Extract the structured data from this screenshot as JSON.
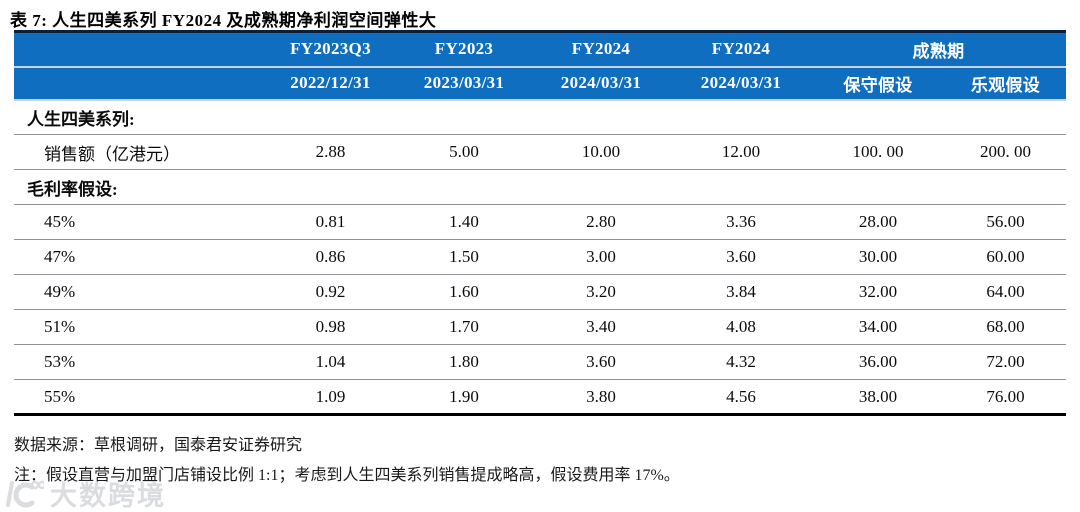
{
  "title": "表 7:  人生四美系列 FY2024 及成熟期净利润空间弹性大",
  "colors": {
    "header_blue": "#0f6ec0",
    "header_top_border": "#0c1e3d",
    "header_separator": "#c9d3de",
    "row_line": "#8f9399",
    "bottom_border": "#000000",
    "watermark_gray": "#c3c6cb"
  },
  "table": {
    "header_row1": [
      {
        "label": "",
        "colspan": 1
      },
      {
        "label": "FY2023Q3",
        "colspan": 1
      },
      {
        "label": "FY2023",
        "colspan": 1
      },
      {
        "label": "FY2024",
        "colspan": 1
      },
      {
        "label": "FY2024",
        "colspan": 1
      },
      {
        "label": "成熟期",
        "colspan": 2
      }
    ],
    "header_row2": [
      "",
      "2022/12/31",
      "2023/03/31",
      "2024/03/31",
      "2024/03/31",
      "保守假设",
      "乐观假设"
    ],
    "rows": [
      {
        "type": "section",
        "label": "人生四美系列:"
      },
      {
        "type": "data",
        "label": "销售额（亿港元）",
        "values": [
          "2.88",
          "5.00",
          "10.00",
          "12.00",
          "100. 00",
          "200. 00"
        ]
      },
      {
        "type": "section",
        "label": "毛利率假设:"
      },
      {
        "type": "data",
        "label": "45%",
        "values": [
          "0.81",
          "1.40",
          "2.80",
          "3.36",
          "28.00",
          "56.00"
        ]
      },
      {
        "type": "data",
        "label": "47%",
        "values": [
          "0.86",
          "1.50",
          "3.00",
          "3.60",
          "30.00",
          "60.00"
        ]
      },
      {
        "type": "data",
        "label": "49%",
        "values": [
          "0.92",
          "1.60",
          "3.20",
          "3.84",
          "32.00",
          "64.00"
        ]
      },
      {
        "type": "data",
        "label": "51%",
        "values": [
          "0.98",
          "1.70",
          "3.40",
          "4.08",
          "34.00",
          "68.00"
        ]
      },
      {
        "type": "data",
        "label": "53%",
        "values": [
          "1.04",
          "1.80",
          "3.60",
          "4.32",
          "36.00",
          "72.00"
        ]
      },
      {
        "type": "data",
        "label": "55%",
        "values": [
          "1.09",
          "1.90",
          "3.80",
          "4.56",
          "38.00",
          "76.00"
        ]
      }
    ]
  },
  "footer": {
    "source": "数据来源：草根调研，国泰君安证券研究",
    "note": "注：假设直营与加盟门店铺设比例 1:1；考虑到人生四美系列销售提成略高，假设费用率 17%。"
  },
  "watermark": {
    "text": "大数跨境"
  }
}
